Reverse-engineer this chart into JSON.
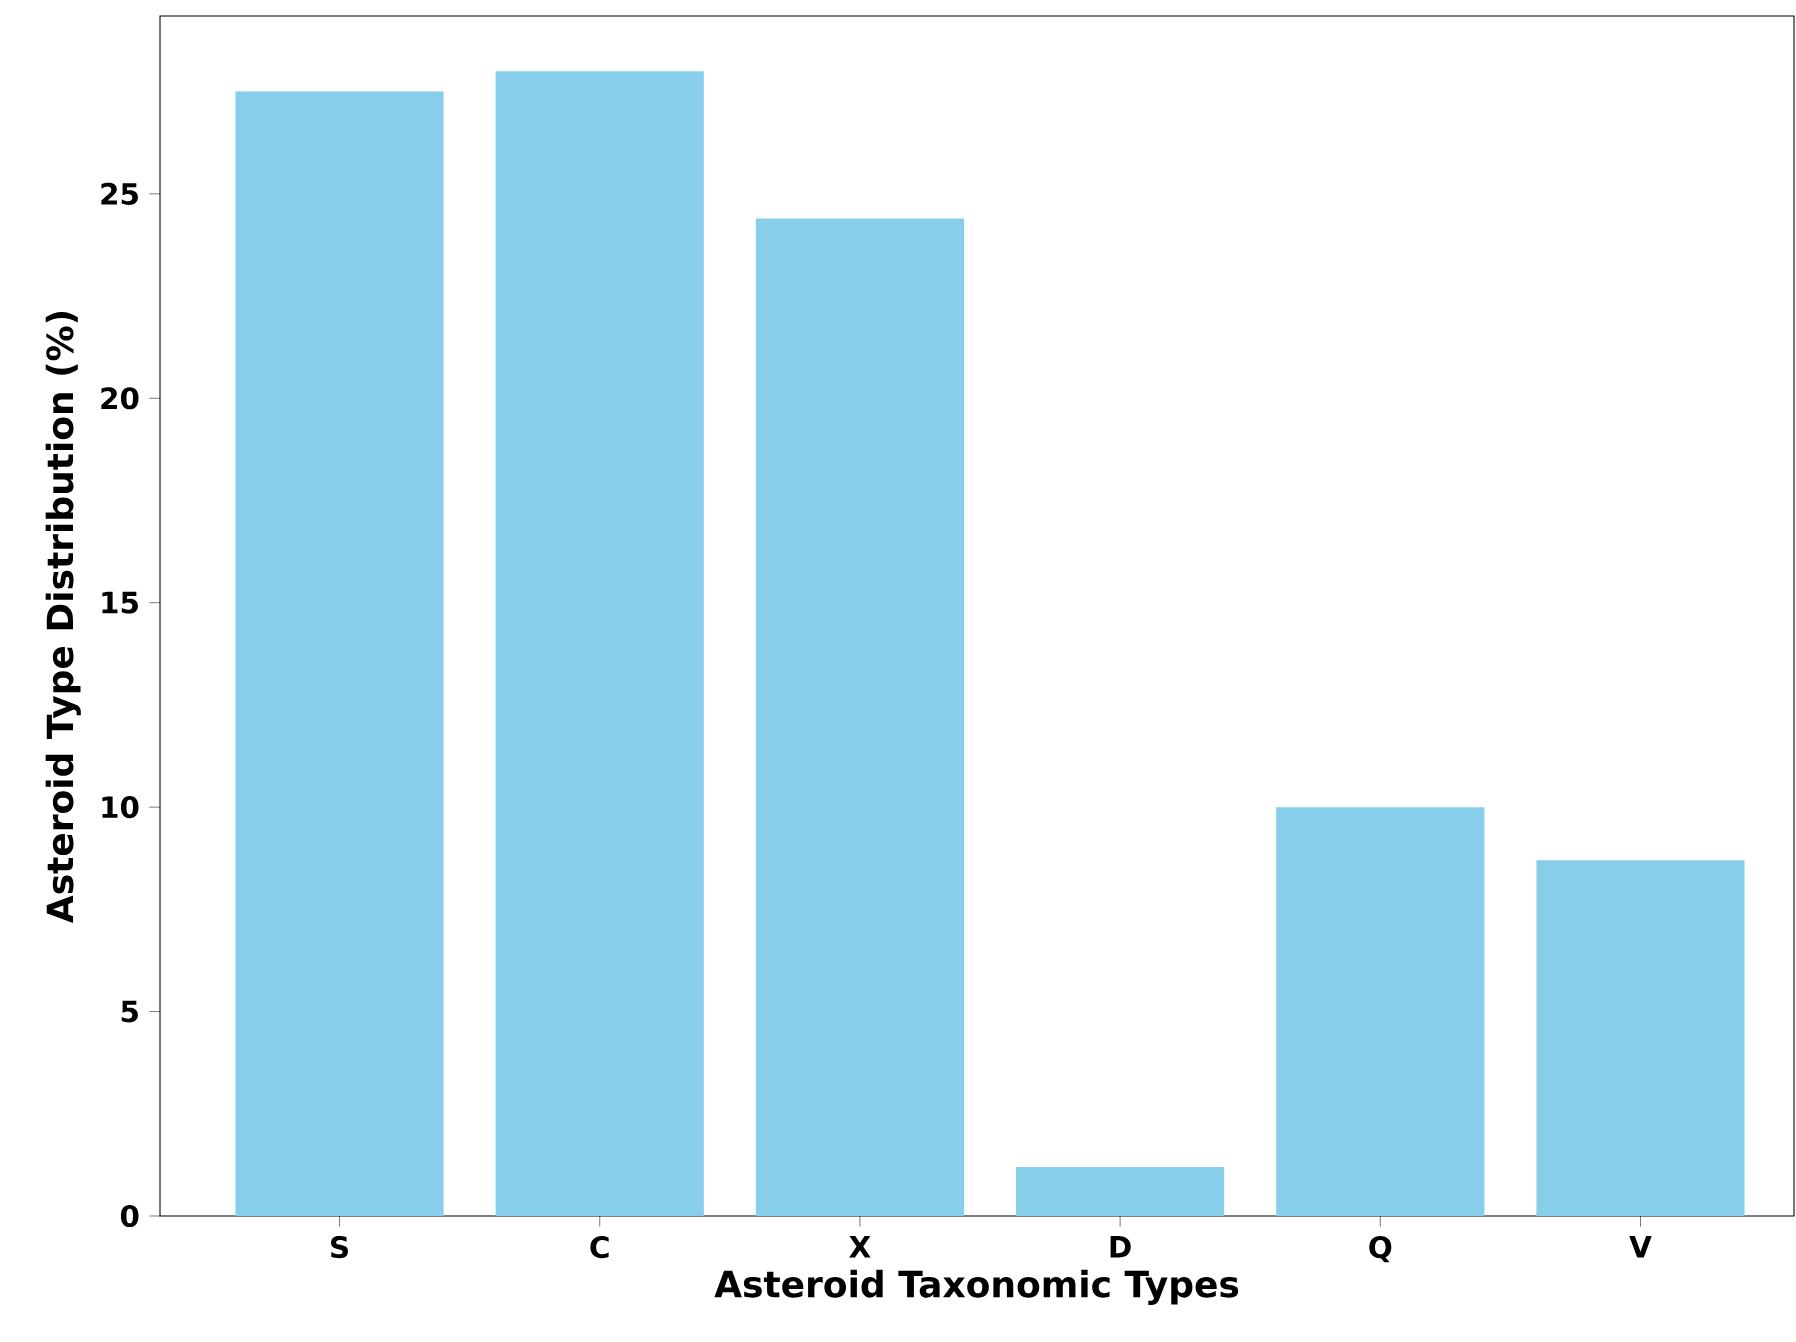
{
  "chart_data": {
    "type": "bar",
    "xlabel": "Asteroid Taxonomic Types",
    "ylabel": "Asteroid Type Distribution (%)",
    "categories": [
      "S",
      "C",
      "X",
      "D",
      "Q",
      "V"
    ],
    "values": [
      27.5,
      28.0,
      24.4,
      1.2,
      10.0,
      8.7
    ],
    "color": "#87ceeb",
    "ylim": [
      0,
      29.35
    ],
    "yticks": [
      0,
      5,
      10,
      15,
      20,
      25
    ],
    "grid": false
  }
}
